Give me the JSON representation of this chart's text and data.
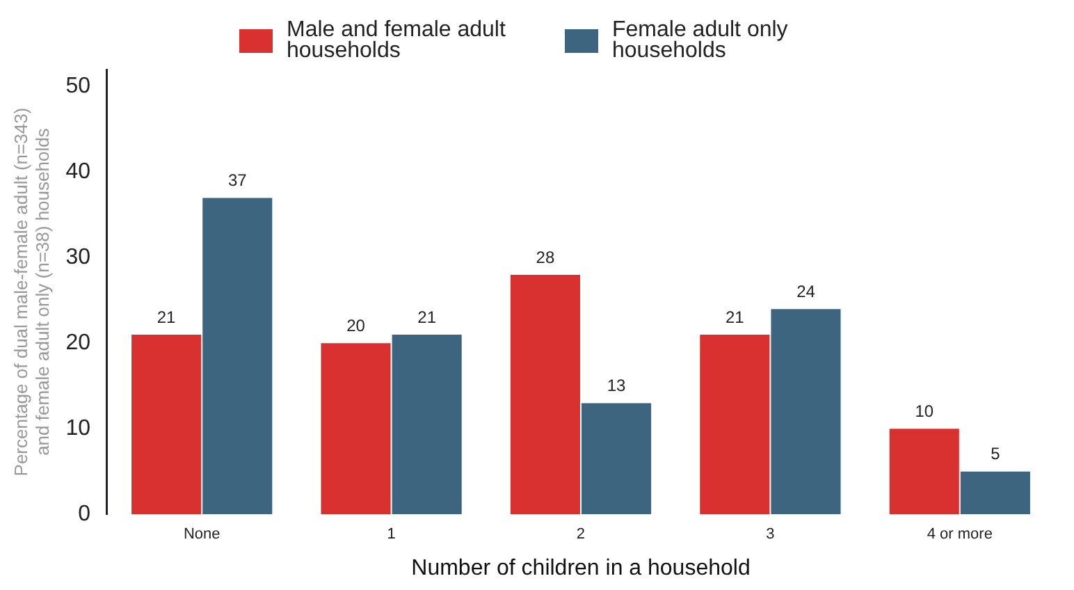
{
  "chart_data": {
    "type": "bar",
    "xlabel": "Number of children in a household",
    "ylabel": "Percentage of dual male-female adult (n=343) and female adult only (n=38) households",
    "categories": [
      "None",
      "1",
      "2",
      "3",
      "4 or more"
    ],
    "series": [
      {
        "name": "Male and female adult households",
        "color": "#d93030",
        "values": [
          21,
          20,
          28,
          21,
          10
        ]
      },
      {
        "name": "Female adult only households",
        "color": "#3e6580",
        "values": [
          37,
          21,
          13,
          24,
          5
        ]
      }
    ],
    "ylim": [
      0,
      52
    ],
    "yticks": [
      0,
      10,
      20,
      30,
      40,
      50
    ],
    "grid": false,
    "legend": "top",
    "data_labels": true
  }
}
